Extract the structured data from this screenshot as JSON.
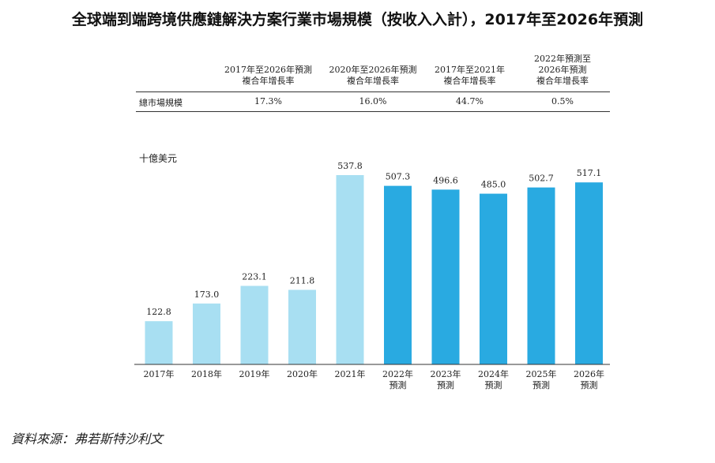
{
  "title": "全球端到端跨境供應鏈解決方案行業市場規模（按收入入計），2017年至2026年預測",
  "cagr_table": {
    "headers": [
      "2017年至2026年預測\n複合年增長率",
      "2020年至2026年預測\n複合年增長率",
      "2017年至2021年\n複合年增長率",
      "2022年預測至\n2026年預測\n複合年增長率"
    ],
    "row_label": "總市場規模",
    "values": [
      "17.3%",
      "16.0%",
      "44.7%",
      "0.5%"
    ]
  },
  "unit_label": "十億美元",
  "source": "資料來源：弗若斯特沙利文",
  "colors": {
    "historical": "#a8dff2",
    "forecast": "#29aae1",
    "axis": "#333333"
  },
  "chart_data": {
    "type": "bar",
    "categories": [
      "2017年",
      "2018年",
      "2019年",
      "2020年",
      "2021年",
      "2022年\n預測",
      "2023年\n預測",
      "2024年\n預測",
      "2025年\n預測",
      "2026年\n預測"
    ],
    "values": [
      122.8,
      173.0,
      223.1,
      211.8,
      537.8,
      507.3,
      496.6,
      485.0,
      502.7,
      517.1
    ],
    "labels": [
      "122.8",
      "173.0",
      "223.1",
      "211.8",
      "537.8",
      "507.3",
      "496.6",
      "485.0",
      "502.7",
      "517.1"
    ],
    "forecast": [
      false,
      false,
      false,
      false,
      false,
      true,
      true,
      true,
      true,
      true
    ],
    "ylabel": "十億美元",
    "ylim": [
      0,
      537.8
    ]
  }
}
